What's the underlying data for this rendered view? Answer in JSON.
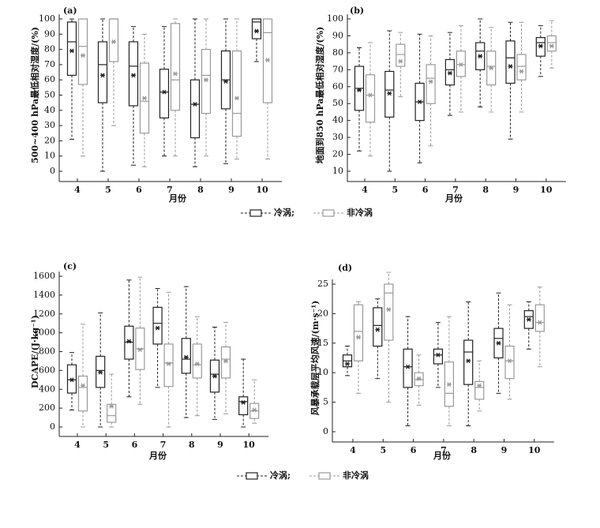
{
  "chart_data": [
    {
      "type": "box",
      "panel": "(a)",
      "y_label": "500~400 hPa最低相对湿度/(%)",
      "x_label": "月份",
      "categories": [
        "4",
        "5",
        "6",
        "7",
        "8",
        "9",
        "10"
      ],
      "ylim": [
        0,
        100
      ],
      "yticks": [
        0,
        10,
        20,
        30,
        40,
        50,
        60,
        70,
        80,
        90,
        100
      ],
      "series": [
        {
          "name": "冷涡;",
          "color": "#222222",
          "whisker_low": [
            21,
            0,
            4,
            10,
            3,
            5,
            72
          ],
          "q1": [
            63,
            45,
            43,
            35,
            22,
            41,
            87
          ],
          "median": [
            85,
            70,
            69,
            52,
            44,
            60,
            98
          ],
          "q3": [
            98,
            85,
            85,
            67,
            60,
            79,
            100
          ],
          "whisker_high": [
            100,
            100,
            95,
            95,
            100,
            100,
            100
          ],
          "mean": [
            79,
            63,
            63,
            52,
            44,
            59,
            92
          ]
        },
        {
          "name": "非冷涡",
          "color": "#999999",
          "whisker_low": [
            10,
            30,
            3,
            10,
            10,
            8,
            8
          ],
          "q1": [
            57,
            72,
            25,
            40,
            38,
            23,
            45
          ],
          "median": [
            82,
            100,
            46,
            60,
            63,
            38,
            91
          ],
          "q3": [
            100,
            100,
            71,
            97,
            80,
            79,
            100
          ],
          "whisker_high": [
            100,
            100,
            90,
            100,
            100,
            100,
            100
          ],
          "mean": [
            76,
            85,
            48,
            64,
            60,
            48,
            73
          ]
        }
      ]
    },
    {
      "type": "box",
      "panel": "(b)",
      "y_label": "地面到850 hPa最低相对湿度/(%)",
      "x_label": "月份",
      "categories": [
        "4",
        "5",
        "6",
        "7",
        "8",
        "9",
        "10"
      ],
      "ylim": [
        10,
        100
      ],
      "yticks": [
        10,
        20,
        30,
        40,
        50,
        60,
        70,
        80,
        90,
        100
      ],
      "series": [
        {
          "color": "#222222",
          "whisker_low": [
            22,
            10,
            15,
            43,
            48,
            29,
            66
          ],
          "q1": [
            46,
            42,
            40,
            61,
            70,
            62,
            78
          ],
          "median": [
            59,
            58,
            51,
            70,
            81,
            77,
            86
          ],
          "q3": [
            72,
            69,
            62,
            76,
            86,
            87,
            89
          ],
          "whisker_high": [
            83,
            93,
            91,
            92,
            100,
            98,
            96
          ],
          "mean": [
            58,
            56,
            51,
            68,
            78,
            72,
            84
          ]
        },
        {
          "color": "#999999",
          "whisker_low": [
            19,
            54,
            25,
            45,
            45,
            45,
            71
          ],
          "q1": [
            39,
            72,
            50,
            66,
            61,
            64,
            81
          ],
          "median": [
            55,
            79,
            65,
            73,
            72,
            72,
            86
          ],
          "q3": [
            67,
            85,
            73,
            81,
            81,
            79,
            90
          ],
          "whisker_high": [
            86,
            92,
            90,
            96,
            95,
            98,
            99
          ],
          "mean": [
            55,
            75,
            63,
            73,
            71,
            69,
            84
          ]
        }
      ]
    },
    {
      "type": "box",
      "panel": "(c)",
      "y_label": "DCAPE/(J·kg⁻¹)",
      "x_label": "月份",
      "categories": [
        "4",
        "5",
        "6",
        "7",
        "8",
        "9",
        "10"
      ],
      "ylim": [
        0,
        1600
      ],
      "yticks": [
        0,
        200,
        400,
        600,
        800,
        1000,
        1200,
        1400,
        1600
      ],
      "series": [
        {
          "name": "冷涡;",
          "color": "#222222",
          "whisker_low": [
            180,
            0,
            320,
            420,
            100,
            80,
            0
          ],
          "q1": [
            360,
            420,
            720,
            880,
            570,
            370,
            130
          ],
          "median": [
            500,
            600,
            900,
            1100,
            720,
            560,
            270
          ],
          "q3": [
            660,
            750,
            1070,
            1270,
            940,
            710,
            320
          ],
          "whisker_high": [
            790,
            1210,
            1560,
            1470,
            1490,
            1060,
            720
          ],
          "mean": [
            500,
            580,
            910,
            1050,
            740,
            540,
            260
          ]
        },
        {
          "name": "非冷涡",
          "color": "#999999",
          "whisker_low": [
            0,
            0,
            240,
            0,
            120,
            140,
            40
          ],
          "q1": [
            170,
            50,
            610,
            430,
            520,
            520,
            90
          ],
          "median": [
            420,
            120,
            830,
            680,
            660,
            720,
            170
          ],
          "q3": [
            540,
            240,
            1050,
            880,
            880,
            850,
            250
          ],
          "whisker_high": [
            1090,
            560,
            1590,
            1430,
            1170,
            1110,
            500
          ],
          "mean": [
            440,
            220,
            820,
            670,
            670,
            700,
            180
          ]
        }
      ]
    },
    {
      "type": "box",
      "panel": "(d)",
      "y_label": "风暴承载层平均风速/(m·s⁻¹)",
      "x_label": "月份",
      "categories": [
        "4",
        "5",
        "6",
        "7",
        "8",
        "9",
        "10"
      ],
      "ylim": [
        0,
        25
      ],
      "yticks": [
        0,
        5,
        10,
        15,
        20,
        25
      ],
      "series": [
        {
          "color": "#222222",
          "whisker_low": [
            9.5,
            9,
            1,
            7.5,
            1,
            6.5,
            14
          ],
          "q1": [
            11,
            14.5,
            7.5,
            11.5,
            8,
            12.5,
            17.5
          ],
          "median": [
            12,
            18,
            11,
            13,
            13.5,
            15.8,
            19.5
          ],
          "q3": [
            13,
            21,
            14,
            14,
            15.5,
            17.5,
            20.5
          ],
          "whisker_high": [
            14.5,
            22.5,
            19.5,
            18.5,
            22,
            23.5,
            22
          ],
          "mean": [
            11.5,
            17.3,
            11,
            13,
            12,
            15,
            19
          ]
        },
        {
          "color": "#999999",
          "whisker_low": [
            6.5,
            5,
            4.5,
            1,
            3.5,
            5.5,
            11
          ],
          "q1": [
            12,
            15.5,
            7.8,
            4.3,
            5.5,
            9,
            17
          ],
          "median": [
            17,
            23.5,
            8.8,
            6.5,
            7.5,
            12,
            18.5
          ],
          "q3": [
            21.5,
            25,
            10,
            11.8,
            8.5,
            14.5,
            21.5
          ],
          "whisker_high": [
            22,
            27,
            13,
            19.5,
            12,
            21.5,
            24.5
          ],
          "mean": [
            16,
            20.7,
            9,
            8,
            7.8,
            12,
            18.5
          ]
        }
      ]
    }
  ]
}
